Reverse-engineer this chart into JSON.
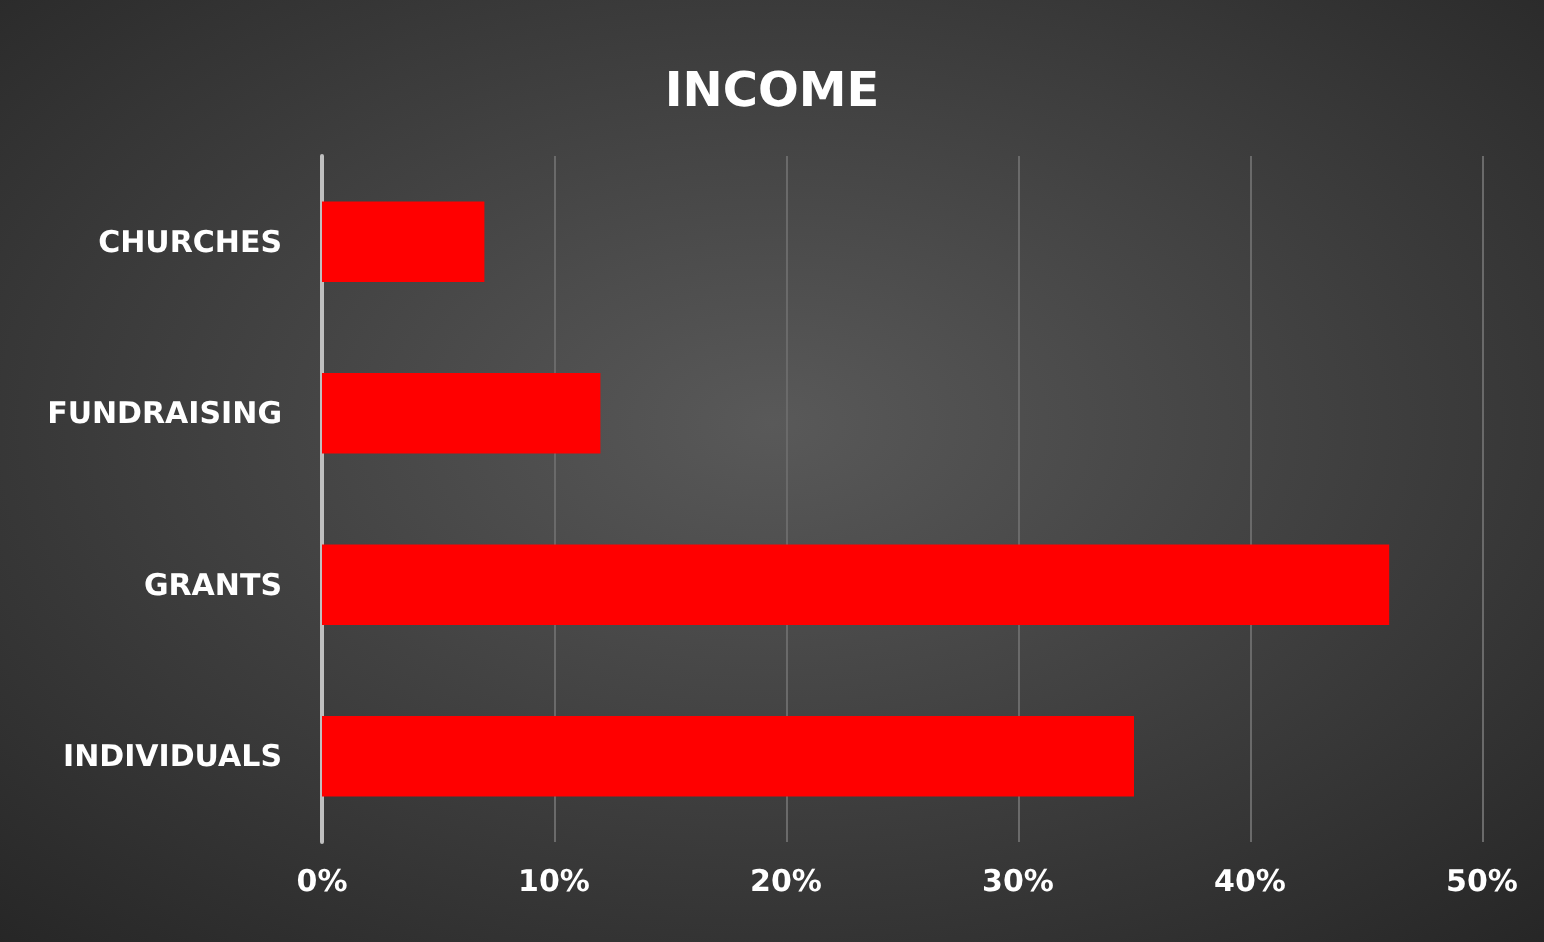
{
  "chart_data": {
    "type": "bar",
    "orientation": "horizontal",
    "title": "INCOME",
    "categories": [
      "CHURCHES",
      "FUNDRAISING",
      "GRANTS",
      "INDIVIDUALS"
    ],
    "values": [
      7,
      12,
      46,
      35
    ],
    "color": "#ff0000",
    "xlim": [
      0,
      50
    ],
    "xticks": [
      {
        "value": 0,
        "label": "0%"
      },
      {
        "value": 10,
        "label": "10%"
      },
      {
        "value": 20,
        "label": "20%"
      },
      {
        "value": 30,
        "label": "30%"
      },
      {
        "value": 40,
        "label": "40%"
      },
      {
        "value": 50,
        "label": "50%"
      }
    ],
    "grid": "x"
  }
}
